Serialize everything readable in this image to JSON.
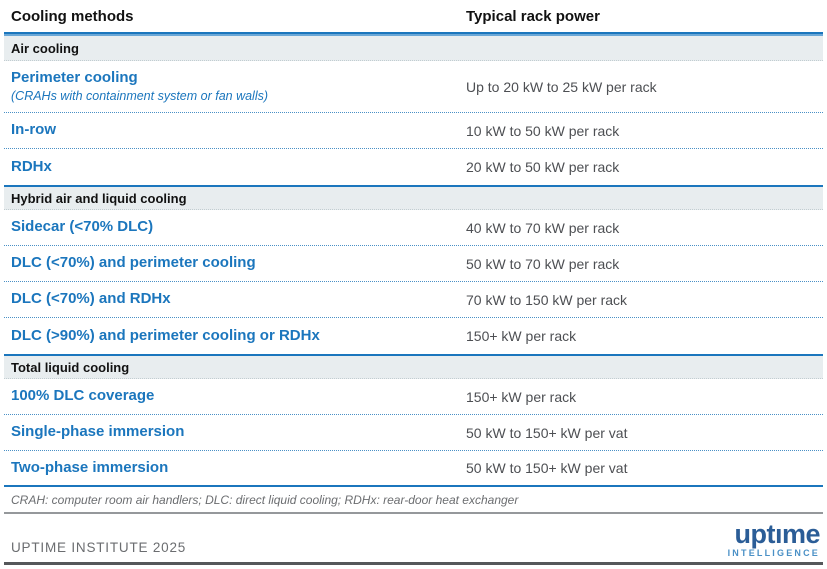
{
  "chart_data": {
    "type": "table",
    "columns": [
      "Cooling methods",
      "Typical rack power"
    ],
    "sections": [
      {
        "label": "Air cooling",
        "rows": [
          {
            "method": "Perimeter cooling",
            "note": "(CRAHs with containment system or fan walls)",
            "power": "Up to 20 kW to 25 kW per rack"
          },
          {
            "method": "In-row",
            "power": "10 kW to 50 kW per rack"
          },
          {
            "method": "RDHx",
            "power": "20 kW to 50 kW per rack"
          }
        ]
      },
      {
        "label": "Hybrid air and liquid cooling",
        "rows": [
          {
            "method": "Sidecar (<70% DLC)",
            "power": "40 kW to 70 kW per rack"
          },
          {
            "method": "DLC (<70%) and perimeter cooling",
            "power": "50 kW to 70 kW per rack"
          },
          {
            "method": "DLC (<70%) and RDHx",
            "power": "70 kW to 150 kW per rack"
          },
          {
            "method": "DLC (>90%) and perimeter cooling or RDHx",
            "power": "150+ kW per rack"
          }
        ]
      },
      {
        "label": "Total liquid cooling",
        "rows": [
          {
            "method": "100% DLC coverage",
            "power": "150+ kW per rack"
          },
          {
            "method": "Single-phase immersion",
            "power": "50 kW to 150+ kW per vat"
          },
          {
            "method": "Two-phase immersion",
            "power": "50 kW to 150+ kW per vat"
          }
        ]
      }
    ],
    "footnote": "CRAH: computer room air handlers; DLC: direct liquid cooling; RDHx: rear-door heat exchanger",
    "source": "UPTIME INSTITUTE 2025"
  },
  "footer": {
    "logo_word": "uptıme",
    "logo_tagline": "INTELLIGENCE"
  },
  "colors": {
    "accent": "#1b76bd",
    "accent-light": "#6aa7d6",
    "section-bg": "#e8edef",
    "body-text": "#4d4f53",
    "muted": "#6b6d70",
    "logo-dark": "#2b5d97",
    "logo-light": "#4a90c6",
    "rule-dark": "#55575a"
  }
}
